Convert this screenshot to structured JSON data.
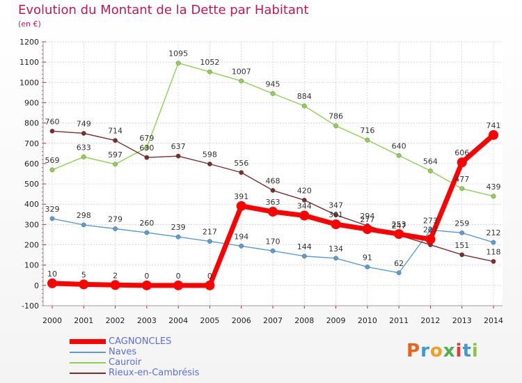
{
  "title": "Evolution du Montant de la Dette par Habitant",
  "unit_label": "(en €)",
  "brand": {
    "letters": [
      "P",
      "r",
      "o",
      "x",
      "i",
      "t",
      "i"
    ],
    "colors": [
      "#e8641b",
      "#3a9bd9",
      "#f0a020",
      "#4caf50",
      "#e53935",
      "#3a9bd9",
      "#8bc34a"
    ]
  },
  "chart_data": {
    "type": "line",
    "x": [
      "2000",
      "2001",
      "2002",
      "2003",
      "2004",
      "2005",
      "2006",
      "2007",
      "2008",
      "2009",
      "2010",
      "2011",
      "2012",
      "2013",
      "2014"
    ],
    "ylim": [
      -100,
      1200
    ],
    "yticks": [
      "-100",
      "0",
      "100",
      "200",
      "300",
      "400",
      "500",
      "600",
      "700",
      "800",
      "900",
      "1000",
      "1100",
      "1200"
    ],
    "grid": true,
    "legend_position": "bottom-left",
    "series": [
      {
        "name": "CAGNONCLES",
        "color": "#ff0000",
        "values": [
          10,
          5,
          2,
          0,
          0,
          0,
          391,
          363,
          344,
          301,
          277,
          253,
          227,
          606,
          741
        ],
        "labels": [
          "10",
          "5",
          "2",
          "0",
          "0",
          "0",
          "391",
          "363",
          "344",
          "301",
          "277",
          "253",
          "227",
          "606",
          "741"
        ]
      },
      {
        "name": "Naves",
        "color": "#5b9bd5",
        "values": [
          329,
          298,
          279,
          260,
          239,
          217,
          194,
          170,
          144,
          134,
          91,
          62,
          273,
          259,
          212
        ],
        "labels": [
          "329",
          "298",
          "279",
          "260",
          "239",
          "217",
          "194",
          "170",
          "144",
          "134",
          "91",
          "62",
          "273",
          "259",
          "212"
        ]
      },
      {
        "name": "Cauroir",
        "color": "#8fd14f",
        "values": [
          569,
          633,
          597,
          679,
          1095,
          1052,
          1007,
          945,
          884,
          786,
          716,
          640,
          564,
          477,
          439
        ],
        "labels": [
          "569",
          "633",
          "597",
          "679",
          "1095",
          "1052",
          "1007",
          "945",
          "884",
          "786",
          "716",
          "640",
          "564",
          "477",
          "439"
        ]
      },
      {
        "name": "Rieux-en-Cambrésis",
        "color": "#7b2d2d",
        "values": [
          760,
          749,
          714,
          630,
          637,
          598,
          556,
          468,
          420,
          347,
          294,
          247,
          200,
          151,
          118
        ],
        "labels": [
          "760",
          "749",
          "714",
          "630",
          "637",
          "598",
          "556",
          "468",
          "420",
          "347",
          "294",
          "247",
          "",
          "151",
          "118"
        ]
      }
    ]
  }
}
